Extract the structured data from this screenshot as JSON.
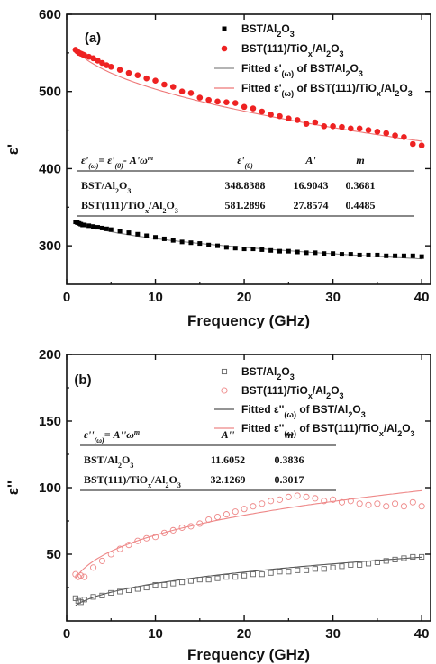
{
  "chart_data": [
    {
      "panel": "(a)",
      "type": "scatter",
      "xlabel": "Frequency (GHz)",
      "ylabel": "ε'",
      "xlim": [
        0,
        41
      ],
      "ylim": [
        250,
        600
      ],
      "xticks": [
        "0",
        "10",
        "20",
        "30",
        "40"
      ],
      "yticks": [
        "300",
        "400",
        "500",
        "600"
      ],
      "series": [
        {
          "name": "BST/Al2O3",
          "legend_rich": "BST/Al<tspan baseline-shift='sub' font-size='9'>2</tspan>O<tspan baseline-shift='sub' font-size='9'>3</tspan>",
          "marker": "square-filled",
          "color": "#000000",
          "x": [
            1,
            1.2,
            1.4,
            1.6,
            1.8,
            2,
            2.5,
            3,
            3.5,
            4,
            4.5,
            5,
            6,
            7,
            8,
            9,
            10,
            11,
            12,
            13,
            14,
            15,
            16,
            17,
            18,
            19,
            20,
            21,
            22,
            23,
            24,
            25,
            26,
            27,
            28,
            29,
            30,
            31,
            32,
            33,
            34,
            35,
            36,
            37,
            38,
            39,
            40
          ],
          "y": [
            331,
            330,
            329,
            328,
            327,
            327,
            326,
            325,
            324,
            323,
            322,
            321,
            319,
            317,
            315,
            313,
            311,
            309,
            307,
            305,
            304,
            303,
            301,
            300,
            298,
            297,
            296,
            296,
            295,
            294,
            293,
            293,
            292,
            291,
            291,
            290,
            290,
            289,
            289,
            288,
            288,
            288,
            287,
            287,
            287,
            287,
            286
          ]
        },
        {
          "name": "BST(111)/TiOx/Al2O3",
          "legend_rich": "BST(111)/TiO<tspan baseline-shift='sub' font-size='9'>x</tspan>/Al<tspan baseline-shift='sub' font-size='9'>2</tspan>O<tspan baseline-shift='sub' font-size='9'>3</tspan>",
          "marker": "circle-filled",
          "color": "#ee2222",
          "x": [
            1,
            1.2,
            1.4,
            1.6,
            1.8,
            2,
            2.5,
            3,
            3.5,
            4,
            4.5,
            5,
            6,
            7,
            8,
            9,
            10,
            11,
            12,
            13,
            14,
            15,
            16,
            17,
            18,
            19,
            20,
            21,
            22,
            23,
            24,
            25,
            26,
            27,
            28,
            29,
            30,
            31,
            32,
            33,
            34,
            35,
            36,
            37,
            38,
            39,
            40
          ],
          "y": [
            554,
            552,
            550,
            549,
            548,
            547,
            545,
            543,
            540,
            537,
            534,
            532,
            528,
            524,
            521,
            517,
            514,
            509,
            506,
            500,
            498,
            492,
            489,
            487,
            486,
            485,
            480,
            478,
            474,
            470,
            468,
            465,
            463,
            458,
            460,
            455,
            455,
            454,
            452,
            452,
            450,
            448,
            446,
            443,
            441,
            432,
            430
          ]
        },
        {
          "name": "Fitted ε'(ω) of BST/Al2O3",
          "legend_rich": "Fitted ε'<tspan baseline-shift='sub' font-size='9'>(ω)</tspan> of BST/Al<tspan baseline-shift='sub' font-size='9'>2</tspan>O<tspan baseline-shift='sub' font-size='9'>3</tspan>",
          "marker": "line",
          "color": "#888888",
          "fit": {
            "e0": 348.8388,
            "A": 16.9043,
            "m": 0.3681
          }
        },
        {
          "name": "Fitted ε'(ω) of BST(111)/TiOx/Al2O3",
          "legend_rich": "Fitted ε'<tspan baseline-shift='sub' font-size='9'>(ω)</tspan> of BST(111)/TiO<tspan baseline-shift='sub' font-size='9'>x</tspan>/Al<tspan baseline-shift='sub' font-size='9'>2</tspan>O<tspan baseline-shift='sub' font-size='9'>3</tspan>",
          "marker": "line",
          "color": "#ee7777",
          "fit": {
            "e0": 581.2896,
            "A": 27.8574,
            "m": 0.4485
          }
        }
      ],
      "table": {
        "header": [
          "ε'(ω)= ε'(0)- A'ω^m",
          "ε'(0)",
          "A'",
          "m"
        ],
        "header_rich": [
          "ε'<tspan baseline-shift='sub' font-size='8'>(ω)</tspan>= ε'<tspan baseline-shift='sub' font-size='8'>(0)</tspan>- A'ω<tspan baseline-shift='super' font-size='8'>m</tspan>",
          "ε'<tspan baseline-shift='sub' font-size='8'>(0)</tspan>",
          "A'",
          "m"
        ],
        "rows": [
          [
            "BST/Al2O3",
            "348.8388",
            "16.9043",
            "0.3681"
          ],
          [
            "BST(111)/TiOx/Al2O3",
            "581.2896",
            "27.8574",
            "0.4485"
          ]
        ],
        "rows_rich": [
          [
            "BST/Al<tspan baseline-shift='sub' font-size='8'>2</tspan>O<tspan baseline-shift='sub' font-size='8'>3</tspan>",
            "348.8388",
            "16.9043",
            "0.3681"
          ],
          [
            "BST(111)/TiO<tspan baseline-shift='sub' font-size='8'>x</tspan>/Al<tspan baseline-shift='sub' font-size='8'>2</tspan>O<tspan baseline-shift='sub' font-size='8'>3</tspan>",
            "581.2896",
            "27.8574",
            "0.4485"
          ]
        ]
      }
    },
    {
      "panel": "(b)",
      "type": "scatter",
      "xlabel": "Frequency (GHz)",
      "ylabel": "ε''",
      "xlim": [
        0,
        41
      ],
      "ylim": [
        0,
        200
      ],
      "xticks": [
        "0",
        "10",
        "20",
        "30",
        "40"
      ],
      "yticks": [
        "50",
        "100",
        "150",
        "200"
      ],
      "series": [
        {
          "name": "BST/Al2O3",
          "legend_rich": "BST/Al<tspan baseline-shift='sub' font-size='9'>2</tspan>O<tspan baseline-shift='sub' font-size='9'>3</tspan>",
          "marker": "square-open",
          "color": "#666666",
          "x": [
            1,
            1.3,
            1.6,
            2,
            3,
            4,
            5,
            6,
            7,
            8,
            9,
            10,
            11,
            12,
            13,
            14,
            15,
            16,
            17,
            18,
            19,
            20,
            21,
            22,
            23,
            24,
            25,
            26,
            27,
            28,
            29,
            30,
            31,
            32,
            33,
            34,
            35,
            36,
            37,
            38,
            39,
            40
          ],
          "y": [
            17,
            15,
            14,
            16,
            18,
            19,
            21,
            22,
            23,
            24,
            25,
            27,
            27,
            28,
            29,
            30,
            31,
            31,
            32,
            33,
            33,
            34,
            35,
            35,
            36,
            37,
            37,
            38,
            38,
            39,
            39,
            40,
            41,
            42,
            42,
            43,
            44,
            45,
            46,
            47,
            48,
            48
          ]
        },
        {
          "name": "BST(111)/TiOx/Al2O3",
          "legend_rich": "BST(111)/TiO<tspan baseline-shift='sub' font-size='9'>x</tspan>/Al<tspan baseline-shift='sub' font-size='9'>2</tspan>O<tspan baseline-shift='sub' font-size='9'>3</tspan>",
          "marker": "circle-open",
          "color": "#ee8888",
          "x": [
            1,
            1.3,
            1.6,
            2,
            3,
            4,
            5,
            6,
            7,
            8,
            9,
            10,
            11,
            12,
            13,
            14,
            15,
            16,
            17,
            18,
            19,
            20,
            21,
            22,
            23,
            24,
            25,
            26,
            27,
            28,
            29,
            30,
            31,
            32,
            33,
            34,
            35,
            36,
            37,
            38,
            39,
            40
          ],
          "y": [
            35,
            33,
            34,
            33,
            40,
            45,
            50,
            54,
            57,
            60,
            62,
            63,
            66,
            68,
            70,
            71,
            73,
            76,
            78,
            80,
            82,
            84,
            86,
            88,
            90,
            91,
            93,
            94,
            93,
            92,
            90,
            91,
            89,
            90,
            88,
            87,
            88,
            86,
            88,
            86,
            89,
            86
          ]
        },
        {
          "name": "Fitted ε''(ω) of BST/Al2O3",
          "legend_rich": "Fitted ε''<tspan baseline-shift='sub' font-size='9'>(ω)</tspan> of BST/Al<tspan baseline-shift='sub' font-size='9'>2</tspan>O<tspan baseline-shift='sub' font-size='9'>3</tspan>",
          "marker": "line",
          "color": "#555555",
          "fit": {
            "A": 11.6052,
            "m": 0.3836
          }
        },
        {
          "name": "Fitted ε''(ω) of BST(111)/TiOx/Al2O3",
          "legend_rich": "Fitted ε''<tspan baseline-shift='sub' font-size='9'>(ω)</tspan> of BST(111)/TiO<tspan baseline-shift='sub' font-size='9'>x</tspan>/Al<tspan baseline-shift='sub' font-size='9'>2</tspan>O<tspan baseline-shift='sub' font-size='9'>3</tspan>",
          "marker": "line",
          "color": "#ee8888",
          "fit": {
            "A": 32.1269,
            "m": 0.3017
          }
        }
      ],
      "table": {
        "header": [
          "ε''(ω)= A''ω^m",
          "A''",
          "m"
        ],
        "header_rich": [
          "ε''<tspan baseline-shift='sub' font-size='8'>(ω)</tspan>= A''ω<tspan baseline-shift='super' font-size='8'>m</tspan>",
          "A''",
          "m"
        ],
        "rows": [
          [
            "BST/Al2O3",
            "11.6052",
            "0.3836"
          ],
          [
            "BST(111)/TiOx/Al2O3",
            "32.1269",
            "0.3017"
          ]
        ],
        "rows_rich": [
          [
            "BST/Al<tspan baseline-shift='sub' font-size='8'>2</tspan>O<tspan baseline-shift='sub' font-size='8'>3</tspan>",
            "11.6052",
            "0.3836"
          ],
          [
            "BST(111)/TiO<tspan baseline-shift='sub' font-size='8'>x</tspan>/Al<tspan baseline-shift='sub' font-size='8'>2</tspan>O<tspan baseline-shift='sub' font-size='8'>3</tspan>",
            "32.1269",
            "0.3017"
          ]
        ]
      }
    }
  ]
}
